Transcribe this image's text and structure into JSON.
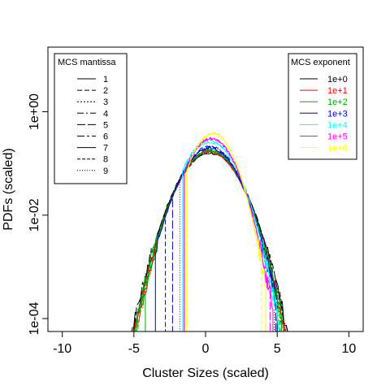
{
  "chart_data": {
    "type": "line",
    "xlabel": "Cluster Sizes (scaled)",
    "ylabel": "PDFs (scaled)",
    "xlim": [
      -11,
      11
    ],
    "ylim_log10": [
      -4.25,
      1.25
    ],
    "y_scale": "log",
    "x_ticks": [
      -10,
      -5,
      0,
      5,
      10
    ],
    "x_tick_labels": [
      "-10",
      "-5",
      "0",
      "5",
      "10"
    ],
    "y_ticks_log10": [
      -4,
      -2,
      0
    ],
    "y_tick_labels": [
      "1e-04",
      "1e-02",
      "1e+00"
    ],
    "legend_mantissa": {
      "title": "MCS mantissa",
      "position": "top-left",
      "entries": [
        "1",
        "2",
        "3",
        "4",
        "5",
        "6",
        "7",
        "8",
        "9"
      ],
      "dashes": [
        "",
        "6,3",
        "2,2",
        "8,3,2,3",
        "10,3",
        "9,3,3,3",
        "",
        "4,2",
        "1,2"
      ]
    },
    "legend_exponent": {
      "title": "MCS exponent",
      "position": "top-right",
      "entries": [
        "1e+0",
        "1e+1",
        "1e+2",
        "1e+3",
        "1e+4",
        "1e+5",
        "1e+6"
      ],
      "colors": [
        "#000000",
        "#ff0000",
        "#00aa00",
        "#0000cc",
        "#00ffff",
        "#ff00ff",
        "#ffff00"
      ]
    },
    "series": [
      {
        "exponent": "1e+0",
        "mantissa": "1",
        "left_end": -6.5,
        "right_end": 6.5,
        "peak": 0.3,
        "sd": 1.35,
        "amp": 0.16
      },
      {
        "exponent": "1e+0",
        "mantissa": "2",
        "left_end": -6.3,
        "right_end": 6.3,
        "peak": 0.3,
        "sd": 1.35,
        "amp": 0.16
      },
      {
        "exponent": "1e+0",
        "mantissa": "5",
        "left_end": -6.0,
        "right_end": 6.0,
        "peak": 0.3,
        "sd": 1.35,
        "amp": 0.17
      },
      {
        "exponent": "1e+1",
        "mantissa": "1",
        "left_end": -6.5,
        "right_end": 5.5,
        "peak": 0.3,
        "sd": 1.3,
        "amp": 0.17
      },
      {
        "exponent": "1e+1",
        "mantissa": "3",
        "left_end": -6.0,
        "right_end": 5.5,
        "peak": 0.3,
        "sd": 1.3,
        "amp": 0.17
      },
      {
        "exponent": "1e+1",
        "mantissa": "6",
        "left_end": -5.8,
        "right_end": 5.4,
        "peak": 0.3,
        "sd": 1.3,
        "amp": 0.17
      },
      {
        "exponent": "1e+2",
        "mantissa": "1",
        "left_end": -5.8,
        "right_end": 5.3,
        "peak": 0.3,
        "sd": 1.3,
        "amp": 0.18
      },
      {
        "exponent": "1e+2",
        "mantissa": "2",
        "left_end": -5.3,
        "right_end": 5.2,
        "peak": 0.3,
        "sd": 1.3,
        "amp": 0.18
      },
      {
        "exponent": "1e+2",
        "mantissa": "4",
        "left_end": -4.8,
        "right_end": 5.1,
        "peak": 0.3,
        "sd": 1.28,
        "amp": 0.18
      },
      {
        "exponent": "1e+2",
        "mantissa": "7",
        "left_end": -4.2,
        "right_end": 5.0,
        "peak": 0.3,
        "sd": 1.28,
        "amp": 0.18
      },
      {
        "exponent": "1e+3",
        "mantissa": "1",
        "left_end": -3.5,
        "right_end": 5.0,
        "peak": 0.3,
        "sd": 1.25,
        "amp": 0.2
      },
      {
        "exponent": "1e+3",
        "mantissa": "2",
        "left_end": -2.8,
        "right_end": 5.0,
        "peak": 0.3,
        "sd": 1.25,
        "amp": 0.2
      },
      {
        "exponent": "1e+3",
        "mantissa": "5",
        "left_end": -2.3,
        "right_end": 4.9,
        "peak": 0.3,
        "sd": 1.25,
        "amp": 0.21
      },
      {
        "exponent": "1e+3",
        "mantissa": "9",
        "left_end": -1.8,
        "right_end": 4.8,
        "peak": 0.3,
        "sd": 1.25,
        "amp": 0.21
      },
      {
        "exponent": "1e+4",
        "mantissa": "1",
        "left_end": -1.6,
        "right_end": 5.5,
        "peak": 0.3,
        "sd": 1.2,
        "amp": 0.26
      },
      {
        "exponent": "1e+4",
        "mantissa": "5",
        "left_end": -1.5,
        "right_end": 5.3,
        "peak": 0.3,
        "sd": 1.2,
        "amp": 0.27
      },
      {
        "exponent": "1e+5",
        "mantissa": "1",
        "left_end": -1.5,
        "right_end": 4.7,
        "peak": 0.4,
        "sd": 1.1,
        "amp": 0.3
      },
      {
        "exponent": "1e+5",
        "mantissa": "5",
        "left_end": -1.5,
        "right_end": 4.5,
        "peak": 0.4,
        "sd": 1.1,
        "amp": 0.3
      },
      {
        "exponent": "1e+6",
        "mantissa": "1",
        "left_end": -1.4,
        "right_end": 4.2,
        "peak": 0.5,
        "sd": 1.0,
        "amp": 0.38
      },
      {
        "exponent": "1e+6",
        "mantissa": "2",
        "left_end": -1.3,
        "right_end": 3.9,
        "peak": 0.5,
        "sd": 1.0,
        "amp": 0.38
      }
    ]
  }
}
